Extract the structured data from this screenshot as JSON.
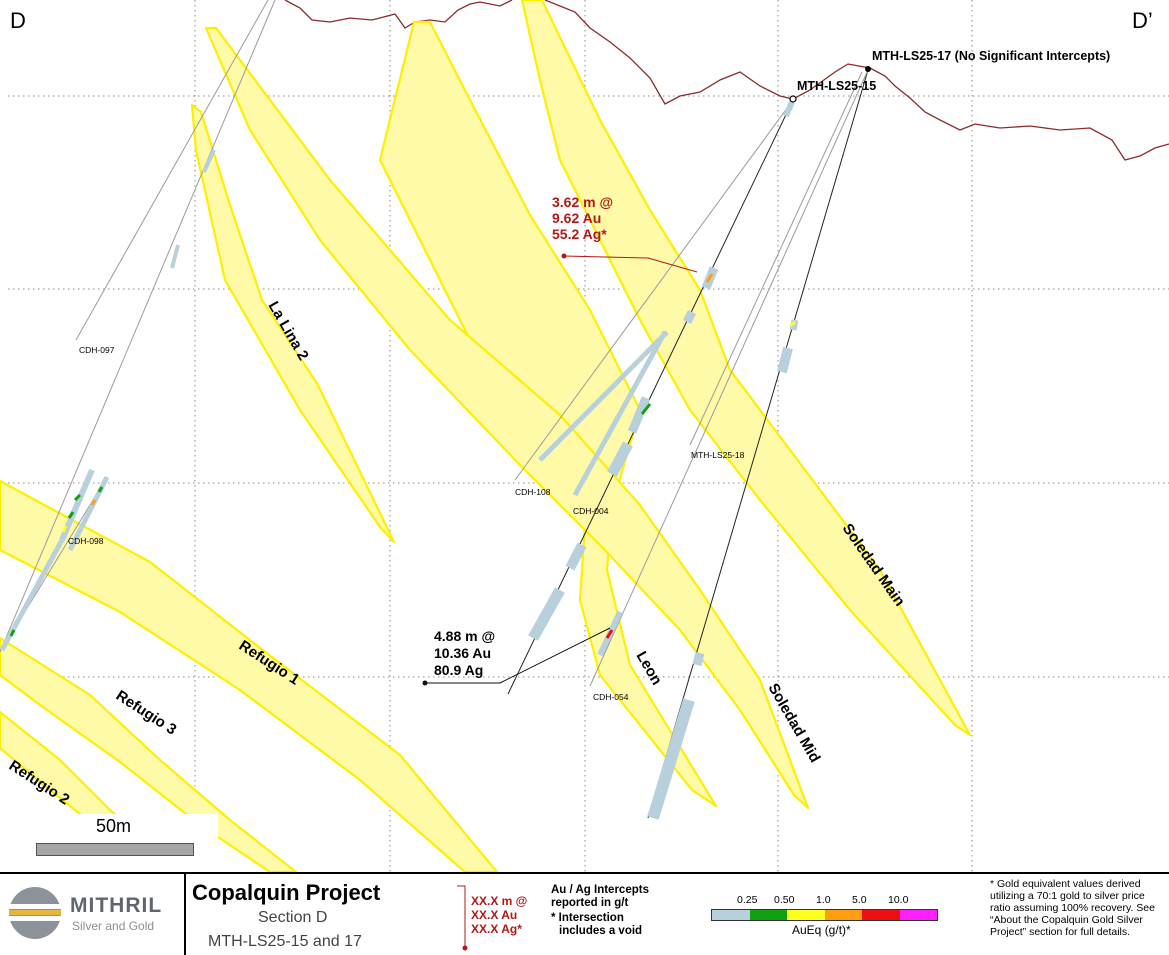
{
  "section": {
    "corner_left": "D",
    "corner_right": "D’",
    "scale_bar_label": "50m",
    "veins": [
      {
        "name": "La Lina 2"
      },
      {
        "name": "Refugio 1"
      },
      {
        "name": "Refugio 3"
      },
      {
        "name": "Refugio 2"
      },
      {
        "name": "Leon"
      },
      {
        "name": "Soledad Mid"
      },
      {
        "name": "Soledad Main"
      }
    ],
    "collars": [
      {
        "name": "MTH-LS25-15"
      },
      {
        "name": "MTH-LS25-17 (No Significant Intercepts)"
      }
    ],
    "holes": [
      {
        "name": "CDH-097"
      },
      {
        "name": "CDH-098"
      },
      {
        "name": "CDH-108"
      },
      {
        "name": "CDH-004"
      },
      {
        "name": "MTH-LS25-18"
      },
      {
        "name": "CDH-054"
      }
    ],
    "intercepts": [
      {
        "lines": [
          "3.62 m @",
          "9.62 Au",
          "55.2 Ag*"
        ],
        "color": "#b01818"
      },
      {
        "lines": [
          "4.88 m @",
          "10.36 Au",
          "80.9 Ag"
        ],
        "color": "#000000"
      }
    ]
  },
  "footer": {
    "logo_name": "MITHRIL",
    "logo_tagline": "Silver and Gold",
    "project_title": "Copalquin Project",
    "section_name": "Section D",
    "holes_line": "MTH-LS25-15 and 17",
    "legend_sample": [
      "XX.X m @",
      "XX.X Au",
      "XX.X Ag*"
    ],
    "legend_note_1": "Au / Ag Intercepts",
    "legend_note_2": "reported in g/t",
    "legend_note_3": "* Intersection",
    "legend_note_4": "includes a void",
    "scale_ticks": [
      "0.25",
      "0.50",
      "1.0",
      "5.0",
      "10.0"
    ],
    "scale_colors": [
      "#b8d0dc",
      "#10a010",
      "#ffff20",
      "#ff9e10",
      "#ee1010",
      "#ff20ff"
    ],
    "scale_title": "AuEq (g/t)*",
    "footnote_lines": [
      "* Gold equivalent values derived",
      "utilizing a 70:1 gold to silver price",
      "ratio assuming 100% recovery. See",
      "“About the Copalquin Gold Silver",
      "Project” section for full details."
    ]
  }
}
